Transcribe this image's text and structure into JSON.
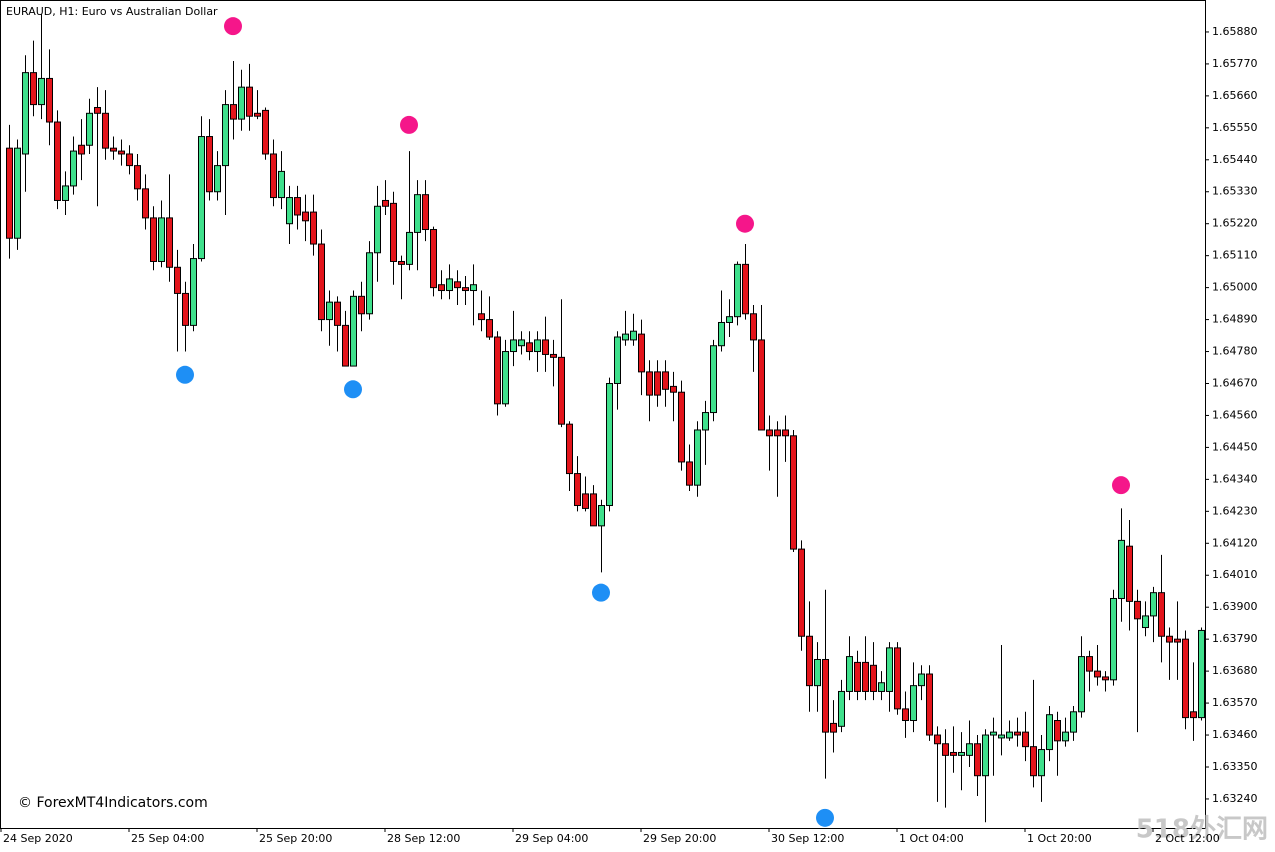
{
  "chart_data": {
    "type": "candlestick",
    "title": "EURAUD, H1:  Euro vs Australian Dollar",
    "watermark": "© ForexMT4Indicators.com",
    "site_mark": "518外汇网",
    "up_color": "#3fe08c",
    "down_color": "#e3141b",
    "open": [
      1.6548,
      1.6517,
      1.6546,
      1.6574,
      1.6563,
      1.6572,
      1.6557,
      1.653,
      1.6535,
      1.6549,
      1.6549,
      1.6562,
      1.656,
      1.6548,
      1.6547,
      1.6546,
      1.6542,
      1.6534,
      1.6524,
      1.6509,
      1.6524,
      1.6507,
      1.6498,
      1.6487,
      1.651,
      1.6552,
      1.6533,
      1.6542,
      1.6563,
      1.6558,
      1.6569,
      1.656,
      1.6561,
      1.6546,
      1.6531,
      1.6522,
      1.6531,
      1.6526,
      1.6526,
      1.6515,
      1.6489,
      1.6495,
      1.6487,
      1.6473,
      1.6497,
      1.6491,
      1.6512,
      1.653,
      1.6529,
      1.6509,
      1.6508,
      1.6519,
      1.6532,
      1.652,
      1.6501,
      1.6499,
      1.6502,
      1.65,
      1.6499,
      1.6491,
      1.6489,
      1.6483,
      1.646,
      1.6478,
      1.648,
      1.6481,
      1.6478,
      1.6482,
      1.6477,
      1.6476,
      1.6453,
      1.6436,
      1.6429,
      1.6429,
      1.6418,
      1.6425,
      1.6467,
      1.6482,
      1.6482,
      1.6484,
      1.6471,
      1.6471,
      1.6471,
      1.6466,
      1.6464,
      1.644,
      1.6432,
      1.6451,
      1.6457,
      1.648,
      1.6488,
      1.649,
      1.6508,
      1.6491,
      1.6482,
      1.6451,
      1.6451,
      1.6451,
      1.6449,
      1.641,
      1.638,
      1.6363,
      1.6372,
      1.635,
      1.6349,
      1.6361,
      1.6371,
      1.6371,
      1.637,
      1.6361,
      1.6361,
      1.6376,
      1.6355,
      1.6351,
      1.6363,
      1.6367,
      1.6346,
      1.6343,
      1.634,
      1.6339,
      1.6339,
      1.6343,
      1.6332,
      1.6346,
      1.6345,
      1.6345,
      1.6347,
      1.6347,
      1.6342,
      1.6332,
      1.6341,
      1.6351,
      1.6344,
      1.6347,
      1.6354,
      1.6373,
      1.6368,
      1.6366,
      1.6365,
      1.6393,
      1.6411,
      1.6392,
      1.6383,
      1.6387,
      1.6395,
      1.638,
      1.6379,
      1.6379,
      1.6354,
      1.6352
    ],
    "high": [
      1.6556,
      1.6551,
      1.658,
      1.6585,
      1.6594,
      1.6582,
      1.6561,
      1.654,
      1.6552,
      1.6558,
      1.6565,
      1.6569,
      1.6568,
      1.6552,
      1.6551,
      1.6549,
      1.6546,
      1.6539,
      1.6528,
      1.653,
      1.6539,
      1.6513,
      1.6502,
      1.6515,
      1.6559,
      1.6558,
      1.6547,
      1.6568,
      1.6578,
      1.6575,
      1.6577,
      1.6568,
      1.6562,
      1.6551,
      1.6547,
      1.6535,
      1.6535,
      1.6532,
      1.6532,
      1.652,
      1.6499,
      1.6497,
      1.6492,
      1.6499,
      1.6502,
      1.6516,
      1.6535,
      1.6537,
      1.6533,
      1.6511,
      1.6547,
      1.6537,
      1.6537,
      1.6521,
      1.6506,
      1.6508,
      1.6506,
      1.6504,
      1.6508,
      1.6499,
      1.6497,
      1.6485,
      1.6482,
      1.6492,
      1.6485,
      1.6485,
      1.6485,
      1.649,
      1.6482,
      1.6496,
      1.6454,
      1.6442,
      1.6435,
      1.6432,
      1.6427,
      1.6469,
      1.6485,
      1.6492,
      1.6491,
      1.6489,
      1.6475,
      1.6475,
      1.6475,
      1.6471,
      1.6468,
      1.6446,
      1.6454,
      1.6461,
      1.6482,
      1.6499,
      1.6496,
      1.6509,
      1.6515,
      1.6494,
      1.6494,
      1.6456,
      1.6454,
      1.6456,
      1.6451,
      1.6413,
      1.6392,
      1.6378,
      1.6396,
      1.6358,
      1.6365,
      1.638,
      1.6375,
      1.638,
      1.6378,
      1.6368,
      1.6378,
      1.6378,
      1.6361,
      1.6371,
      1.637,
      1.637,
      1.6349,
      1.6348,
      1.6349,
      1.6347,
      1.6351,
      1.6346,
      1.6348,
      1.6352,
      1.6377,
      1.6351,
      1.6352,
      1.6354,
      1.6365,
      1.6346,
      1.6356,
      1.6354,
      1.6352,
      1.6356,
      1.638,
      1.6375,
      1.6377,
      1.6368,
      1.6396,
      1.6424,
      1.642,
      1.6396,
      1.6392,
      1.6397,
      1.6408,
      1.6383,
      1.6392,
      1.6382,
      1.6371,
      1.6383
    ],
    "low": [
      1.651,
      1.6513,
      1.6533,
      1.6559,
      1.6558,
      1.6549,
      1.6527,
      1.6525,
      1.6532,
      1.6537,
      1.6546,
      1.6528,
      1.6544,
      1.6544,
      1.6542,
      1.6539,
      1.653,
      1.652,
      1.6506,
      1.6507,
      1.6502,
      1.6478,
      1.6478,
      1.6485,
      1.6509,
      1.653,
      1.653,
      1.6525,
      1.6551,
      1.6554,
      1.6554,
      1.6558,
      1.6544,
      1.6528,
      1.6527,
      1.6515,
      1.652,
      1.6516,
      1.6511,
      1.6485,
      1.648,
      1.6478,
      1.6473,
      1.6473,
      1.6485,
      1.6489,
      1.6502,
      1.6525,
      1.6501,
      1.6496,
      1.6506,
      1.6506,
      1.6516,
      1.6497,
      1.6496,
      1.6496,
      1.6494,
      1.6494,
      1.6487,
      1.6485,
      1.6482,
      1.6456,
      1.6459,
      1.6473,
      1.6477,
      1.6475,
      1.6471,
      1.6471,
      1.6466,
      1.6452,
      1.643,
      1.6423,
      1.6423,
      1.6418,
      1.6402,
      1.6423,
      1.6458,
      1.648,
      1.648,
      1.6463,
      1.6454,
      1.6459,
      1.6459,
      1.6454,
      1.6437,
      1.643,
      1.6428,
      1.6439,
      1.6454,
      1.6478,
      1.6483,
      1.6487,
      1.6489,
      1.6471,
      1.6451,
      1.6437,
      1.6428,
      1.644,
      1.6409,
      1.6375,
      1.6354,
      1.6354,
      1.6331,
      1.634,
      1.6347,
      1.6358,
      1.6358,
      1.6358,
      1.6358,
      1.6358,
      1.6354,
      1.6353,
      1.6345,
      1.6347,
      1.6358,
      1.6344,
      1.6323,
      1.6321,
      1.6333,
      1.6327,
      1.6335,
      1.6325,
      1.6316,
      1.6332,
      1.6339,
      1.6344,
      1.6342,
      1.6337,
      1.6328,
      1.6323,
      1.6337,
      1.6332,
      1.6342,
      1.6344,
      1.6352,
      1.6361,
      1.6363,
      1.6361,
      1.6363,
      1.6385,
      1.6382,
      1.6347,
      1.638,
      1.6378,
      1.6371,
      1.6365,
      1.6365,
      1.6348,
      1.6344,
      1.6351
    ],
    "close": [
      1.6517,
      1.6548,
      1.6574,
      1.6563,
      1.6572,
      1.6557,
      1.653,
      1.6535,
      1.6547,
      1.6546,
      1.656,
      1.656,
      1.6548,
      1.6547,
      1.6546,
      1.6542,
      1.6534,
      1.6524,
      1.6509,
      1.6524,
      1.6507,
      1.6498,
      1.6487,
      1.651,
      1.6552,
      1.6533,
      1.6542,
      1.6563,
      1.6558,
      1.6569,
      1.6559,
      1.6559,
      1.6546,
      1.6531,
      1.654,
      1.6531,
      1.6525,
      1.6523,
      1.6515,
      1.6489,
      1.6495,
      1.6487,
      1.6473,
      1.6497,
      1.6491,
      1.6512,
      1.6528,
      1.6528,
      1.6509,
      1.6508,
      1.6519,
      1.6532,
      1.652,
      1.65,
      1.6499,
      1.6503,
      1.65,
      1.6499,
      1.6501,
      1.6489,
      1.6483,
      1.646,
      1.6478,
      1.6482,
      1.6482,
      1.6478,
      1.6482,
      1.6477,
      1.6476,
      1.6453,
      1.6436,
      1.6425,
      1.6424,
      1.6418,
      1.6425,
      1.6467,
      1.6483,
      1.6484,
      1.6485,
      1.6471,
      1.6463,
      1.6463,
      1.6465,
      1.6464,
      1.644,
      1.6432,
      1.6451,
      1.6457,
      1.648,
      1.6488,
      1.649,
      1.6508,
      1.6491,
      1.6482,
      1.6451,
      1.6449,
      1.6449,
      1.6449,
      1.641,
      1.638,
      1.6363,
      1.6372,
      1.6347,
      1.6347,
      1.6361,
      1.6373,
      1.6361,
      1.6361,
      1.6361,
      1.6364,
      1.6376,
      1.6355,
      1.6351,
      1.6363,
      1.6367,
      1.6346,
      1.6343,
      1.6339,
      1.6339,
      1.634,
      1.6343,
      1.6332,
      1.6346,
      1.6347,
      1.6346,
      1.6347,
      1.6346,
      1.6342,
      1.6332,
      1.6341,
      1.6353,
      1.6344,
      1.6347,
      1.6354,
      1.6373,
      1.6368,
      1.6366,
      1.6365,
      1.6393,
      1.6413,
      1.6392,
      1.6386,
      1.6387,
      1.6395,
      1.638,
      1.6378,
      1.6378,
      1.6352,
      1.6352,
      1.6382
    ],
    "up_signals": {
      "color": "#1e8ff5",
      "x": [
        22,
        43,
        74,
        102
      ],
      "values": [
        1.647,
        1.6465,
        1.6395,
        1.63175
      ]
    },
    "down_signals": {
      "color": "#f5168a",
      "x": [
        28,
        50,
        92,
        139
      ],
      "values": [
        1.659,
        1.6556,
        1.6522,
        1.6432
      ]
    },
    "xlim": [
      -1.125,
      149.5
    ],
    "xticks": [
      {
        "value": -1,
        "label": "24 Sep 2020"
      },
      {
        "value": 15,
        "label": "25 Sep 04:00"
      },
      {
        "value": 31,
        "label": "25 Sep 20:00"
      },
      {
        "value": 47,
        "label": "28 Sep 12:00"
      },
      {
        "value": 63,
        "label": "29 Sep 04:00"
      },
      {
        "value": 79,
        "label": "29 Sep 20:00"
      },
      {
        "value": 95,
        "label": "30 Sep 12:00"
      },
      {
        "value": 111,
        "label": "1 Oct 04:00"
      },
      {
        "value": 127,
        "label": "1 Oct 20:00"
      },
      {
        "value": 143,
        "label": "2 Oct 12:00"
      }
    ],
    "ylim": [
      1.6314,
      1.6599
    ],
    "yticks": [
      {
        "value": 1.6588,
        "label": "1.65880"
      },
      {
        "value": 1.6577,
        "label": "1.65770"
      },
      {
        "value": 1.6566,
        "label": "1.65660"
      },
      {
        "value": 1.6555,
        "label": "1.65550"
      },
      {
        "value": 1.6544,
        "label": "1.65440"
      },
      {
        "value": 1.6533,
        "label": "1.65330"
      },
      {
        "value": 1.6522,
        "label": "1.65220"
      },
      {
        "value": 1.6511,
        "label": "1.65110"
      },
      {
        "value": 1.65,
        "label": "1.65000"
      },
      {
        "value": 1.6489,
        "label": "1.64890"
      },
      {
        "value": 1.6478,
        "label": "1.64780"
      },
      {
        "value": 1.6467,
        "label": "1.64670"
      },
      {
        "value": 1.6456,
        "label": "1.64560"
      },
      {
        "value": 1.6445,
        "label": "1.64450"
      },
      {
        "value": 1.6434,
        "label": "1.64340"
      },
      {
        "value": 1.6423,
        "label": "1.64230"
      },
      {
        "value": 1.6412,
        "label": "1.64120"
      },
      {
        "value": 1.6401,
        "label": "1.64010"
      },
      {
        "value": 1.639,
        "label": "1.63900"
      },
      {
        "value": 1.6379,
        "label": "1.63790"
      },
      {
        "value": 1.6368,
        "label": "1.63680"
      },
      {
        "value": 1.6357,
        "label": "1.63570"
      },
      {
        "value": 1.6346,
        "label": "1.63460"
      },
      {
        "value": 1.6335,
        "label": "1.63350"
      },
      {
        "value": 1.6324,
        "label": "1.63240"
      }
    ]
  }
}
